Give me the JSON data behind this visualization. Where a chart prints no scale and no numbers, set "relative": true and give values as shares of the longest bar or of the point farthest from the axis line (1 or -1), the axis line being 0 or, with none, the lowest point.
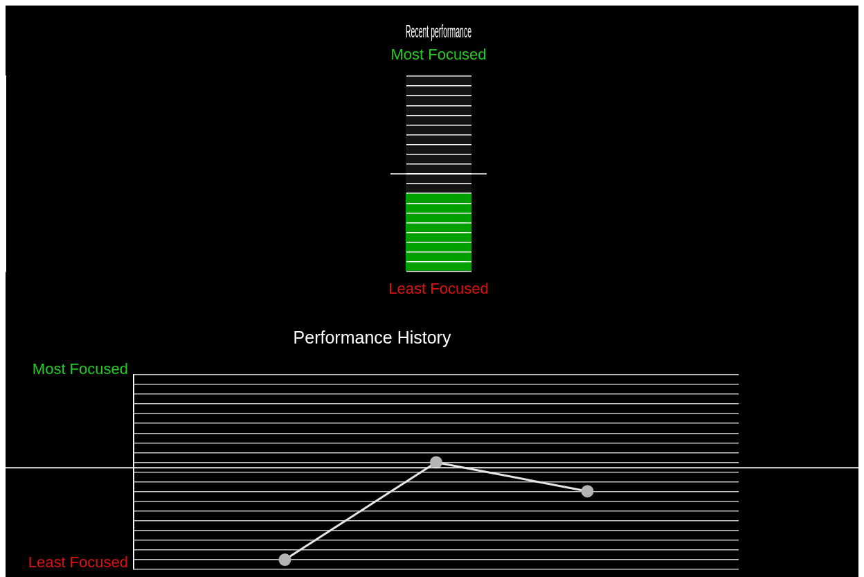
{
  "chart_data": [
    {
      "type": "bar",
      "title": "Recent performance",
      "categories": [
        null
      ],
      "stacked": true,
      "series": [
        {
          "color": "#00a000",
          "values": [
            0.4
          ]
        },
        {
          "color": "#141414",
          "values": [
            0.6
          ]
        }
      ],
      "relative": true,
      "grid": "y",
      "annotations": [
        "Most Focused",
        "Least Focused"
      ],
      "ref_lines": [
        {
          "axis": "y",
          "value": 0.5,
          "color": "#bdbdbd"
        }
      ]
    },
    {
      "type": "line",
      "title": "Performance History",
      "categories": [
        null,
        null,
        null
      ],
      "series": [
        {
          "color": "#e6e6e6",
          "values": [
            0.09,
            1,
            0.73
          ]
        }
      ],
      "relative": true,
      "grid": "y",
      "marker": "circle",
      "annotations": [
        "Most Focused",
        "Least Focused"
      ],
      "ref_lines": [
        {
          "axis": "y",
          "value": 0.95,
          "color": "#e6e6e6"
        }
      ]
    }
  ]
}
